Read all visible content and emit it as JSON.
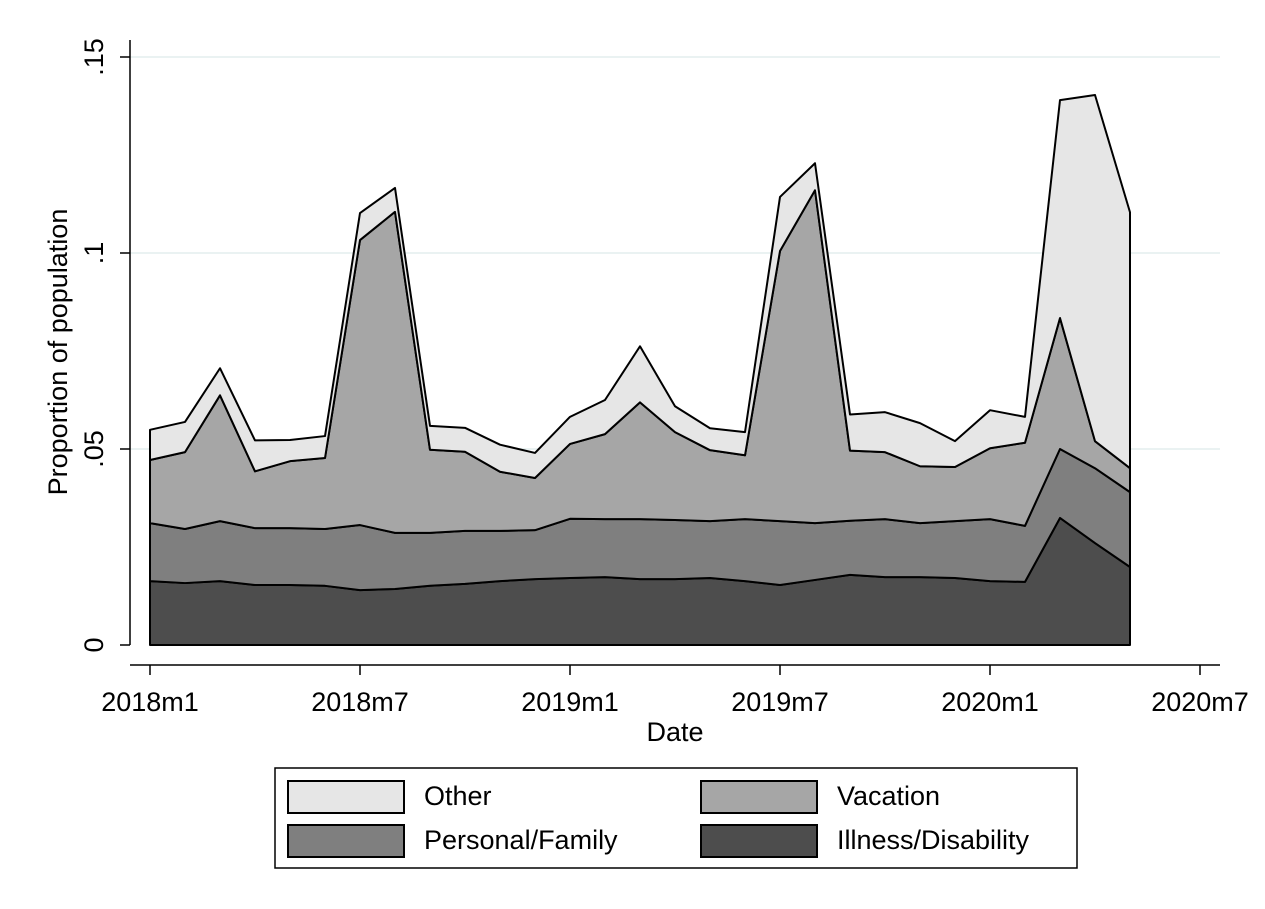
{
  "chart_data": {
    "type": "stacked-area",
    "x_label": "Date",
    "y_label": "Proportion of population",
    "x": [
      "2018m1",
      "2018m2",
      "2018m3",
      "2018m4",
      "2018m5",
      "2018m6",
      "2018m7",
      "2018m8",
      "2018m9",
      "2018m10",
      "2018m11",
      "2018m12",
      "2019m1",
      "2019m2",
      "2019m3",
      "2019m4",
      "2019m5",
      "2019m6",
      "2019m7",
      "2019m8",
      "2019m9",
      "2019m10",
      "2019m11",
      "2019m12",
      "2020m1",
      "2020m2",
      "2020m3",
      "2020m4",
      "2020m5"
    ],
    "series": [
      {
        "name": "Illness/Disability",
        "color": "#4d4d4d",
        "values": [
          0.0163,
          0.0158,
          0.0163,
          0.0153,
          0.0153,
          0.0151,
          0.014,
          0.0143,
          0.0151,
          0.0156,
          0.0163,
          0.0168,
          0.0171,
          0.0173,
          0.0168,
          0.0168,
          0.0171,
          0.0163,
          0.0153,
          0.0166,
          0.0179,
          0.0173,
          0.0173,
          0.0171,
          0.0163,
          0.0161,
          0.0324,
          0.026,
          0.0199
        ]
      },
      {
        "name": "Personal/Family",
        "color": "#7f7f7f",
        "values": [
          0.0148,
          0.0138,
          0.0153,
          0.0145,
          0.0145,
          0.0145,
          0.0166,
          0.0143,
          0.0135,
          0.0135,
          0.0128,
          0.0125,
          0.0151,
          0.0148,
          0.0153,
          0.0151,
          0.0145,
          0.0158,
          0.0163,
          0.0145,
          0.0138,
          0.0148,
          0.0138,
          0.0145,
          0.0158,
          0.0143,
          0.0176,
          0.0191,
          0.0191
        ]
      },
      {
        "name": "Vacation",
        "color": "#a6a6a6",
        "values": [
          0.0161,
          0.0196,
          0.0321,
          0.0145,
          0.0171,
          0.0181,
          0.0727,
          0.0819,
          0.0212,
          0.0202,
          0.0151,
          0.0133,
          0.0191,
          0.0217,
          0.0298,
          0.0224,
          0.0181,
          0.0163,
          0.0689,
          0.0849,
          0.0179,
          0.0171,
          0.0145,
          0.0138,
          0.0181,
          0.0212,
          0.0334,
          0.0069,
          0.0061
        ]
      },
      {
        "name": "Other",
        "color": "#e6e6e6",
        "values": [
          0.0077,
          0.0077,
          0.0069,
          0.0079,
          0.0054,
          0.0056,
          0.0069,
          0.0061,
          0.0061,
          0.0061,
          0.0069,
          0.0064,
          0.0069,
          0.0087,
          0.0143,
          0.0066,
          0.0056,
          0.0059,
          0.0138,
          0.0069,
          0.0092,
          0.0102,
          0.011,
          0.0066,
          0.0097,
          0.0066,
          0.0556,
          0.0883,
          0.0653
        ]
      }
    ],
    "xlim": [
      "2018m1",
      "2020m7"
    ],
    "xticks": [
      "2018m1",
      "2018m7",
      "2019m1",
      "2019m7",
      "2020m1",
      "2020m7"
    ],
    "ylim": [
      0,
      0.15
    ],
    "yticks": [
      0,
      {
        "value": 0.05,
        "label": ".05"
      },
      {
        "value": 0.1,
        "label": ".1"
      },
      {
        "value": 0.15,
        "label": ".15"
      }
    ],
    "grid": true,
    "legend": "bottom"
  }
}
